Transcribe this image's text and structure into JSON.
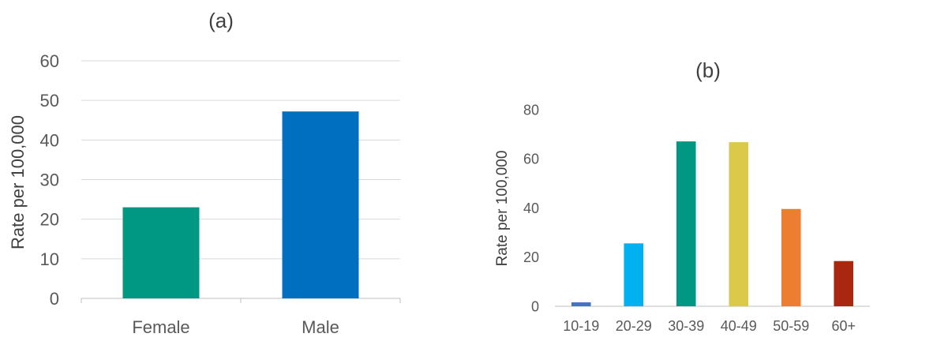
{
  "chart_data": [
    {
      "type": "bar",
      "title": "(a)",
      "xlabel": "",
      "ylabel": "Rate per 100,000",
      "ylim": [
        0,
        60
      ],
      "yticks": [
        0,
        10,
        20,
        30,
        40,
        50,
        60
      ],
      "categories": [
        "Female",
        "Male"
      ],
      "values": [
        23,
        47.2
      ],
      "colors": [
        "#009882",
        "#006fbf"
      ],
      "grid": true
    },
    {
      "type": "bar",
      "title": "(b)",
      "xlabel": "",
      "ylabel": "Rate per 100,000",
      "ylim": [
        0,
        80
      ],
      "yticks": [
        0,
        20,
        40,
        60,
        80
      ],
      "categories": [
        "10-19",
        "20-29",
        "30-39",
        "40-49",
        "50-59",
        "60+"
      ],
      "values": [
        1.6,
        25.6,
        67.1,
        66.8,
        39.6,
        18.4
      ],
      "colors": [
        "#4472c4",
        "#00b0f0",
        "#009882",
        "#dbca4a",
        "#ed7d31",
        "#a9270e"
      ],
      "grid": false
    }
  ]
}
